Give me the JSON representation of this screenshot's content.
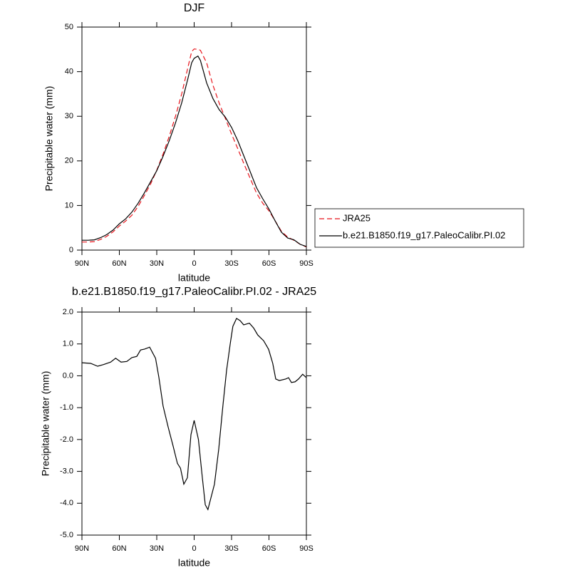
{
  "chart_data": [
    {
      "type": "line",
      "title": "DJF",
      "xlabel": "latitude",
      "ylabel": "Precipitable water (mm)",
      "x": [
        90,
        85,
        80,
        75,
        70,
        65,
        60,
        55,
        50,
        45,
        40,
        35,
        30,
        25,
        20,
        15,
        10,
        5,
        2,
        0,
        -3,
        -5,
        -10,
        -15,
        -20,
        -25,
        -30,
        -35,
        -40,
        -45,
        -50,
        -55,
        -60,
        -65,
        -70,
        -75,
        -80,
        -85,
        -90
      ],
      "xlim": [
        90,
        -90
      ],
      "xticks": [
        {
          "value": 90,
          "label": "90N"
        },
        {
          "value": 60,
          "label": "60N"
        },
        {
          "value": 30,
          "label": "30N"
        },
        0,
        {
          "value": -30,
          "label": "30S"
        },
        {
          "value": -60,
          "label": "60S"
        },
        {
          "value": -90,
          "label": "90S"
        }
      ],
      "ylim": [
        0,
        50
      ],
      "yticks": [
        0,
        10,
        20,
        30,
        40,
        50
      ],
      "legend": "right",
      "series": [
        {
          "name": "JRA25",
          "color": "#e8141b",
          "dashed": true,
          "values": [
            1.8,
            1.8,
            1.9,
            2.4,
            3.1,
            4.1,
            5.4,
            6.5,
            7.8,
            9.8,
            12.2,
            14.8,
            17.9,
            21.5,
            25.5,
            30,
            35,
            41,
            44.5,
            45.1,
            45,
            44.8,
            42,
            37,
            33,
            29.5,
            26,
            22.7,
            19.3,
            16,
            12.8,
            10.5,
            8.8,
            6.5,
            4.2,
            2.9,
            2.2,
            1.3,
            0.7
          ]
        },
        {
          "name": "b.e21.B1850.f19_g17.PaleoCalibr.PI.02",
          "color": "#000000",
          "dashed": false,
          "values": [
            2.2,
            2.2,
            2.3,
            2.8,
            3.5,
            4.5,
            5.9,
            7.0,
            8.5,
            10.5,
            12.8,
            15.3,
            17.8,
            21,
            24.5,
            28.5,
            33,
            38.5,
            42,
            43,
            43.5,
            42.5,
            37.5,
            34,
            31.5,
            29.8,
            27.5,
            24.5,
            21,
            17.5,
            14,
            11.5,
            9.2,
            6.5,
            4,
            2.7,
            2.3,
            1.3,
            0.8
          ]
        }
      ]
    },
    {
      "type": "line",
      "title": "b.e21.B1850.f19_g17.PaleoCalibr.PI.02 - JRA25",
      "xlabel": "latitude",
      "ylabel": "Precipitable water (mm)",
      "x": [
        90,
        83,
        77.4,
        73,
        67,
        63,
        58.6,
        54,
        50,
        46,
        43,
        39.7,
        35.7,
        31,
        28.3,
        24.9,
        20.9,
        16.9,
        13.4,
        11,
        8.3,
        5.4,
        2.6,
        0,
        -3.4,
        -6.6,
        -8.9,
        -11,
        -16.3,
        -19.7,
        -23,
        -26,
        -28.9,
        -31,
        -34,
        -36.9,
        -39.7,
        -44.3,
        -47.7,
        -51,
        -55.7,
        -59.7,
        -63,
        -65.4,
        -68.3,
        -73.4,
        -75.7,
        -78,
        -80.9,
        -83.7,
        -87,
        -90
      ],
      "xlim": [
        90,
        -90
      ],
      "xticks": [
        {
          "value": 90,
          "label": "90N"
        },
        {
          "value": 60,
          "label": "60N"
        },
        {
          "value": 30,
          "label": "30N"
        },
        0,
        {
          "value": -30,
          "label": "30S"
        },
        {
          "value": -60,
          "label": "60S"
        },
        {
          "value": -90,
          "label": "90S"
        }
      ],
      "ylim": [
        -5,
        2
      ],
      "yticks": [
        {
          "value": -5,
          "label": "-5.0"
        },
        {
          "value": -4,
          "label": "-4.0"
        },
        {
          "value": -3,
          "label": "-3.0"
        },
        {
          "value": -2,
          "label": "-2.0"
        },
        {
          "value": -1,
          "label": "-1.0"
        },
        {
          "value": 0,
          "label": "0.0"
        },
        {
          "value": 1,
          "label": "1.0"
        },
        {
          "value": 2,
          "label": "2.0"
        }
      ],
      "series": [
        {
          "color": "#000000",
          "dashed": false,
          "values": [
            0.41,
            0.39,
            0.3,
            0.35,
            0.43,
            0.55,
            0.43,
            0.45,
            0.57,
            0.61,
            0.81,
            0.84,
            0.9,
            0.55,
            -0.05,
            -0.95,
            -1.6,
            -2.2,
            -2.75,
            -2.9,
            -3.4,
            -3.2,
            -1.85,
            -1.4,
            -2.0,
            -3.2,
            -4.05,
            -4.2,
            -3.4,
            -2.3,
            -0.95,
            0.17,
            1.0,
            1.55,
            1.8,
            1.73,
            1.6,
            1.65,
            1.5,
            1.28,
            1.1,
            0.83,
            0.39,
            -0.1,
            -0.15,
            -0.1,
            -0.06,
            -0.21,
            -0.19,
            -0.1,
            0.05,
            -0.06
          ]
        }
      ]
    }
  ]
}
